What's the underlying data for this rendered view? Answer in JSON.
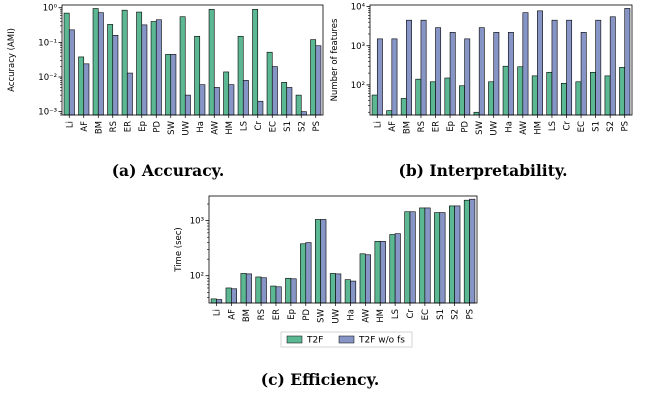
{
  "colors": {
    "t2f": "#5cb893",
    "wofs": "#8795c6"
  },
  "legend": {
    "t2f": "T2F",
    "wofs": "T2F w/o fs"
  },
  "chart_data": [
    {
      "type": "bar",
      "ylabel": "Accuracy (AMI)",
      "yscale": "log",
      "ylim": [
        0.0008,
        1.2
      ],
      "yticks": [
        0.001,
        0.01,
        0.1,
        1
      ],
      "yticklabels": [
        "10⁻³",
        "10⁻²",
        "10⁻¹",
        "10⁰"
      ],
      "caption": "(a) Accuracy.",
      "categories": [
        "Li",
        "AF",
        "BM",
        "RS",
        "ER",
        "Ep",
        "PD",
        "SW",
        "UW",
        "Ha",
        "AW",
        "HM",
        "LS",
        "Cr",
        "EC",
        "S1",
        "S2",
        "PS"
      ],
      "series": [
        {
          "name": "T2F",
          "values": [
            0.7,
            0.038,
            0.95,
            0.33,
            0.85,
            0.75,
            0.4,
            0.045,
            0.55,
            0.15,
            0.9,
            0.014,
            0.15,
            0.9,
            0.052,
            0.007,
            0.003,
            0.12
          ]
        },
        {
          "name": "T2F w/o fs",
          "values": [
            0.23,
            0.024,
            0.72,
            0.16,
            0.013,
            0.32,
            0.45,
            0.045,
            0.003,
            0.006,
            0.005,
            0.006,
            0.008,
            0.002,
            0.02,
            0.005,
            0.001,
            0.08
          ]
        }
      ]
    },
    {
      "type": "bar",
      "ylabel": "Number of features",
      "yscale": "log",
      "ylim": [
        17,
        11000
      ],
      "yticks": [
        100,
        1000,
        10000
      ],
      "yticklabels": [
        "10²",
        "10³",
        "10⁴"
      ],
      "caption": "(b) Interpretability.",
      "categories": [
        "Li",
        "AF",
        "BM",
        "RS",
        "ER",
        "Ep",
        "PD",
        "SW",
        "UW",
        "Ha",
        "AW",
        "HM",
        "LS",
        "Cr",
        "EC",
        "S1",
        "S2",
        "PS"
      ],
      "series": [
        {
          "name": "T2F",
          "values": [
            55,
            22,
            45,
            140,
            120,
            150,
            95,
            20,
            120,
            300,
            290,
            170,
            210,
            110,
            120,
            210,
            170,
            280
          ]
        },
        {
          "name": "T2F w/o fs",
          "values": [
            1500,
            1500,
            4500,
            4500,
            2900,
            2200,
            1500,
            2900,
            2200,
            2200,
            7000,
            7800,
            4500,
            4500,
            2200,
            4500,
            5500,
            9000
          ]
        }
      ]
    },
    {
      "type": "bar",
      "ylabel": "Time (sec)",
      "yscale": "log",
      "ylim": [
        32,
        2800
      ],
      "yticks": [
        100,
        1000
      ],
      "yticklabels": [
        "10²",
        "10³"
      ],
      "caption": "(c) Efficiency.",
      "categories": [
        "Li",
        "AF",
        "BM",
        "RS",
        "ER",
        "Ep",
        "PD",
        "SW",
        "UW",
        "Ha",
        "AW",
        "HM",
        "LS",
        "Cr",
        "EC",
        "S1",
        "S2",
        "PS"
      ],
      "series": [
        {
          "name": "T2F",
          "values": [
            38,
            60,
            110,
            95,
            65,
            90,
            380,
            1050,
            110,
            85,
            250,
            420,
            560,
            1450,
            1700,
            1400,
            1850,
            2350
          ]
        },
        {
          "name": "T2F w/o fs",
          "values": [
            37,
            58,
            108,
            92,
            63,
            88,
            400,
            1050,
            108,
            80,
            240,
            420,
            580,
            1450,
            1700,
            1400,
            1850,
            2450
          ]
        }
      ]
    }
  ]
}
